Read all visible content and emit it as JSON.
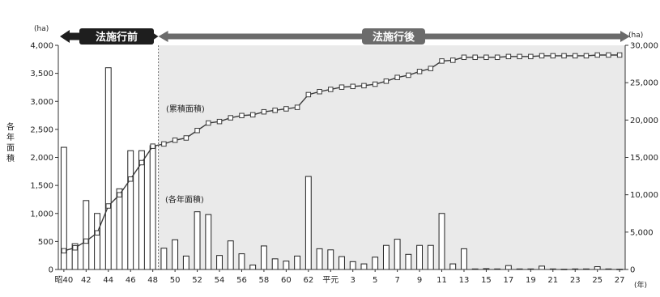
{
  "chart_data": {
    "type": "bar",
    "categories": [
      "40",
      "41",
      "42",
      "43",
      "44",
      "45",
      "46",
      "47",
      "48",
      "49",
      "50",
      "51",
      "52",
      "53",
      "54",
      "55",
      "56",
      "57",
      "58",
      "59",
      "60",
      "61",
      "62",
      "63",
      "平元",
      "2",
      "3",
      "4",
      "5",
      "6",
      "7",
      "8",
      "9",
      "10",
      "11",
      "12",
      "13",
      "14",
      "15",
      "16",
      "17",
      "18",
      "19",
      "20",
      "21",
      "22",
      "23",
      "24",
      "25",
      "26",
      "27"
    ],
    "tick_labels": [
      "昭40",
      "42",
      "44",
      "46",
      "48",
      "50",
      "52",
      "54",
      "56",
      "58",
      "60",
      "62",
      "平元",
      "3",
      "5",
      "7",
      "9",
      "11",
      "13",
      "15",
      "17",
      "19",
      "21",
      "23",
      "25",
      "27"
    ],
    "x_unit": "(年)",
    "left_axis": {
      "unit": "(ha)",
      "label": "各年面積",
      "range": [
        0,
        4000
      ],
      "ticks": [
        "0",
        "500",
        "1,000",
        "1,500",
        "2,000",
        "2,500",
        "3,000",
        "3,500",
        "4,000"
      ]
    },
    "right_axis": {
      "unit": "(ha)",
      "range": [
        0,
        30000
      ],
      "ticks": [
        "0",
        "5,000",
        "10,000",
        "15,000",
        "20,000",
        "25,000",
        "30,000"
      ]
    },
    "periods": {
      "before": "法施行前",
      "after": "法施行後",
      "boundary_after_category": "48"
    },
    "series": [
      {
        "name": "(各年面積)",
        "type": "bar",
        "axis": "left",
        "values": [
          2180,
          460,
          1230,
          1000,
          3600,
          1440,
          2120,
          2120,
          2210,
          380,
          530,
          240,
          1030,
          980,
          250,
          510,
          280,
          80,
          420,
          190,
          150,
          240,
          1660,
          370,
          350,
          230,
          140,
          100,
          220,
          430,
          540,
          270,
          430,
          430,
          1000,
          100,
          370,
          10,
          15,
          10,
          70,
          10,
          10,
          60,
          10,
          5,
          10,
          10,
          50,
          10,
          5
        ]
      },
      {
        "name": "(累積面積)",
        "type": "line",
        "axis": "right",
        "marker": "square",
        "values": [
          2500,
          2900,
          3800,
          4900,
          8500,
          10000,
          12100,
          14300,
          16500,
          16800,
          17300,
          17600,
          18600,
          19600,
          19800,
          20300,
          20600,
          20700,
          21100,
          21300,
          21500,
          21700,
          23400,
          23800,
          24100,
          24400,
          24500,
          24600,
          24800,
          25200,
          25700,
          26000,
          26500,
          26900,
          27900,
          28000,
          28400,
          28400,
          28400,
          28400,
          28500,
          28500,
          28500,
          28600,
          28600,
          28600,
          28600,
          28600,
          28700,
          28700,
          28700
        ]
      }
    ]
  },
  "colors": {
    "bar_fill": "#ffffff",
    "bar_stroke": "#222222",
    "line": "#3a3a3a",
    "marker_fill": "#ffffff",
    "band_before": "#1e1e1e",
    "band_after": "#6b6b6b",
    "after_region": "#eaeaea",
    "axis": "#333333"
  }
}
